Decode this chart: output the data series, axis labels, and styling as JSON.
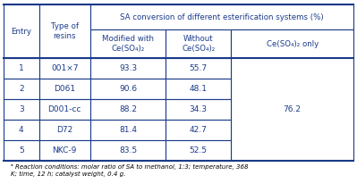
{
  "entries": [
    1,
    2,
    3,
    4,
    5
  ],
  "resins": [
    "001×7",
    "D061",
    "D001-cc",
    "D72",
    "NKC-9"
  ],
  "modified": [
    "93.3",
    "90.6",
    "88.2",
    "81.4",
    "83.5"
  ],
  "without": [
    "55.7",
    "48.1",
    "34.3",
    "42.7",
    "52.5"
  ],
  "ce_only": "76.2",
  "header_main": "SA conversion of different esterification systems (%)",
  "header_col1": "Entry",
  "header_col2": "Type of\nresins",
  "header_col3": "Modified with\nCe(SO₄)₂",
  "header_col4": "Without\nCe(SO₄)₂",
  "header_col5": "Ce(SO₄)₂ only",
  "footnote": "ᵃ Reaction conditions: molar ratio of SA to methanol, 1:3; temperature, 368\nK; time, 12 h; catalyst weight, 0.4 g.",
  "bg_color": "#ffffff",
  "text_color": "#1a3a8a",
  "border_color": "#1a3a8a",
  "footnote_color": "#000000",
  "title_fontsize": 6.2,
  "header_fontsize": 6.2,
  "data_fontsize": 6.5,
  "footnote_fontsize": 5.0
}
